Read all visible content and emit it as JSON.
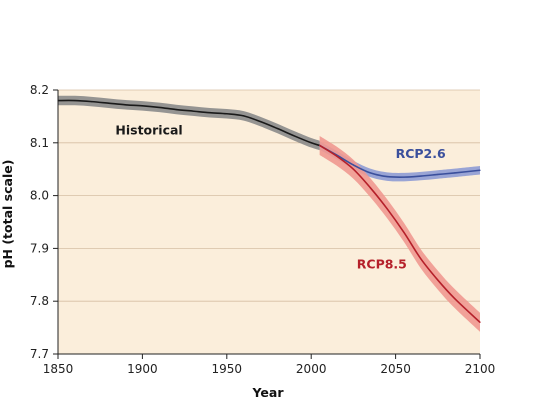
{
  "chart_data": {
    "type": "line",
    "xlabel": "Year",
    "ylabel": "pH (total scale)",
    "xlim": [
      1850,
      2100
    ],
    "ylim": [
      7.7,
      8.2
    ],
    "xticks": [
      "1850",
      "1900",
      "1950",
      "2000",
      "2050",
      "2100"
    ],
    "yticks": [
      "7.7",
      "7.8",
      "7.9",
      "8.0",
      "8.1",
      "8.2"
    ],
    "grid": "horizontal",
    "colors": {
      "background": "#fbeedb",
      "grid": "#d6bfa4",
      "historical": "#1a1a1a",
      "historical_band": "#8a8a8a",
      "rcp26": "#3a4f9c",
      "rcp26_band": "#8e9bd4",
      "rcp85": "#b5202a",
      "rcp85_band": "#ef9890"
    },
    "series": [
      {
        "name": "Historical",
        "x": [
          1850,
          1860,
          1870,
          1880,
          1890,
          1900,
          1910,
          1920,
          1930,
          1940,
          1950,
          1960,
          1970,
          1980,
          1990,
          2000,
          2005
        ],
        "y": [
          8.18,
          8.18,
          8.178,
          8.175,
          8.172,
          8.17,
          8.167,
          8.163,
          8.16,
          8.157,
          8.155,
          8.151,
          8.14,
          8.127,
          8.113,
          8.1,
          8.095
        ],
        "band": 0.009
      },
      {
        "name": "RCP2.6",
        "x": [
          2005,
          2015,
          2025,
          2035,
          2045,
          2055,
          2065,
          2075,
          2085,
          2100
        ],
        "y": [
          8.095,
          8.077,
          8.058,
          8.043,
          8.036,
          8.035,
          8.037,
          8.04,
          8.043,
          8.048
        ],
        "band": 0.008
      },
      {
        "name": "RCP8.5",
        "x": [
          2005,
          2015,
          2025,
          2035,
          2045,
          2055,
          2065,
          2075,
          2085,
          2100
        ],
        "y": [
          8.095,
          8.075,
          8.05,
          8.015,
          7.975,
          7.93,
          7.88,
          7.84,
          7.805,
          7.76
        ],
        "band": 0.018
      }
    ]
  }
}
